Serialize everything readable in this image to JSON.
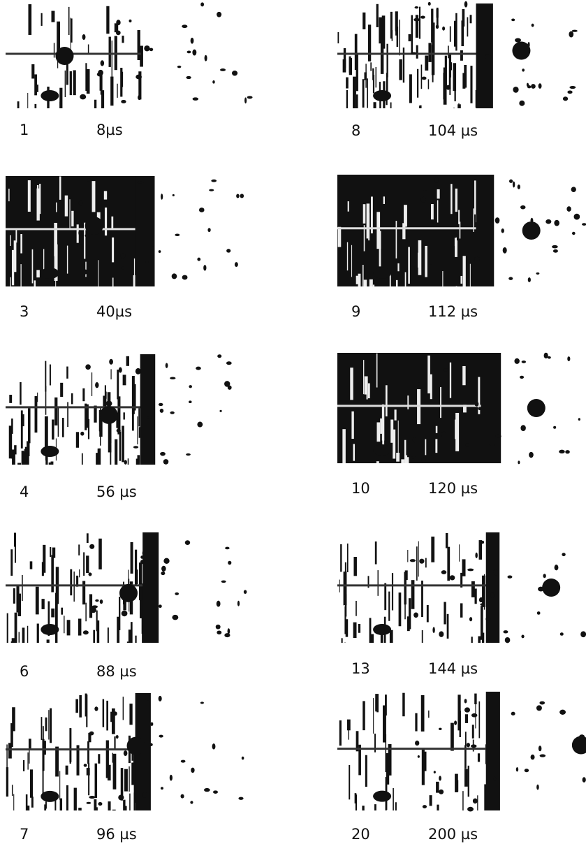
{
  "frames": [
    {
      "number": "1",
      "time": "8µs"
    },
    {
      "number": "3",
      "time": "40µs"
    },
    {
      "number": "4",
      "time": "56 µs"
    },
    {
      "number": "6",
      "time": "88 µs"
    },
    {
      "number": "7",
      "time": "96 µs"
    },
    {
      "number": "8",
      "time": "104 µs"
    },
    {
      "number": "9",
      "time": "112 µs"
    },
    {
      "number": "10",
      "time": "120 µs"
    },
    {
      "number": "13",
      "time": "144 µs"
    },
    {
      "number": "20",
      "time": "200 µs"
    }
  ]
}
